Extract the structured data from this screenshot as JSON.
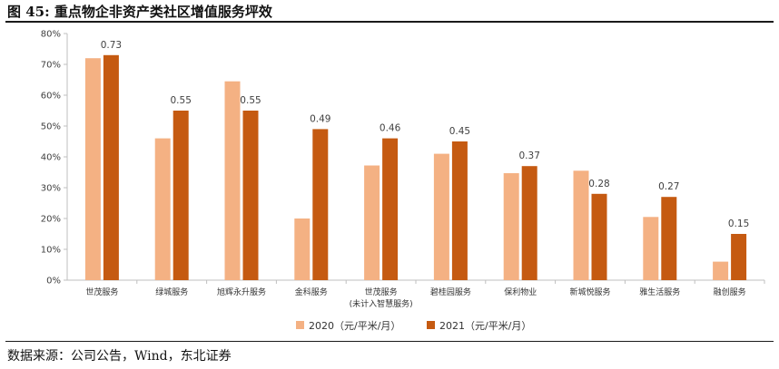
{
  "figure": {
    "title": "图 45:  重点物企非资产类社区增值服务坪效",
    "source": "数据来源：公司公告，Wind，东北证券"
  },
  "colors": {
    "series_2020": "#F4B183",
    "series_2021": "#C55A11",
    "axis": "#bfbfbf",
    "label": "#404040"
  },
  "chart_data": {
    "type": "bar",
    "categories": [
      "世茂服务",
      "绿城服务",
      "旭辉永升服务",
      "金科服务",
      "世茂服务",
      "碧桂园服务",
      "保利物业",
      "新城悦服务",
      "雅生活服务",
      "融创服务"
    ],
    "category_sublabels": [
      "",
      "",
      "",
      "",
      "(未计入智慧服务)",
      "",
      "",
      "",
      "",
      ""
    ],
    "series": [
      {
        "name": "2020（元/平米/月）",
        "values": [
          0.72,
          0.46,
          0.645,
          0.2,
          0.372,
          0.41,
          0.347,
          0.355,
          0.205,
          0.06
        ]
      },
      {
        "name": "2021（元/平米/月）",
        "values": [
          0.73,
          0.55,
          0.55,
          0.49,
          0.46,
          0.45,
          0.37,
          0.28,
          0.27,
          0.15
        ]
      }
    ],
    "data_labels_2021": [
      "0.73",
      "0.55",
      "0.55",
      "0.49",
      "0.46",
      "0.45",
      "0.37",
      "0.28",
      "0.27",
      "0.15"
    ],
    "ylim": [
      0,
      0.8
    ],
    "yticks": [
      "0%",
      "10%",
      "20%",
      "30%",
      "40%",
      "50%",
      "60%",
      "70%",
      "80%"
    ],
    "grid": false,
    "legend_position": "bottom",
    "xlabel": "",
    "ylabel": ""
  }
}
